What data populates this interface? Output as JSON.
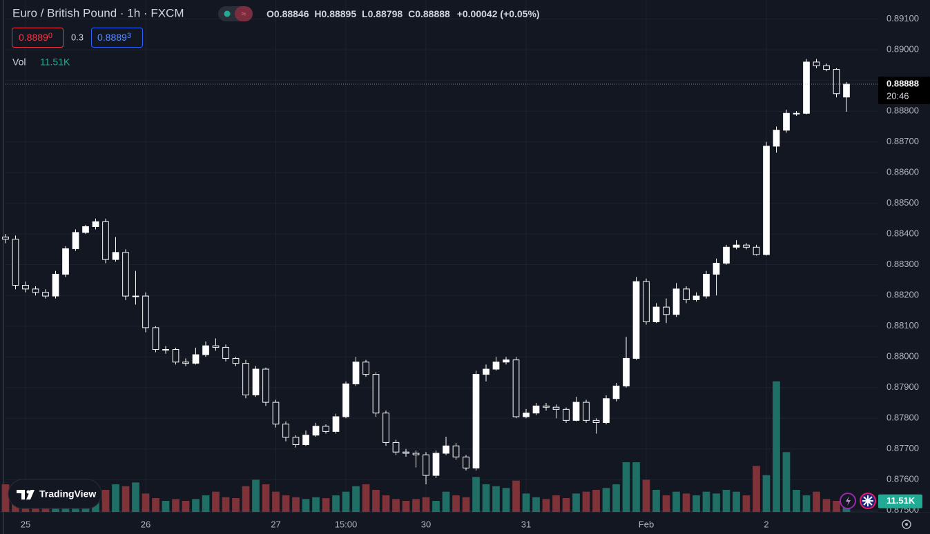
{
  "chart_data": {
    "type": "candlestick",
    "header": {
      "symbol": "Euro / British Pound · 1h · FXCM",
      "o_key": "O",
      "o_val": "0.88846",
      "h_key": "H",
      "h_val": "0.88895",
      "l_key": "L",
      "l_val": "0.88798",
      "c_key": "C",
      "c_val": "0.88888",
      "change": "+0.00042 (+0.05%)"
    },
    "bid": {
      "main": "0.8889",
      "sup": "0"
    },
    "spread": "0.3",
    "ask": {
      "main": "0.8889",
      "sup": "3"
    },
    "volume_title": "Vol",
    "volume_label": "11.51K",
    "last_price_label": "0.88888",
    "countdown": "20:46",
    "logo": "TradingView",
    "categories": [
      null,
      null,
      "25",
      null,
      null,
      null,
      null,
      null,
      null,
      null,
      null,
      null,
      null,
      null,
      "26",
      null,
      null,
      null,
      null,
      null,
      null,
      null,
      null,
      null,
      null,
      null,
      null,
      "27",
      null,
      null,
      null,
      null,
      null,
      null,
      "15:00",
      null,
      null,
      null,
      null,
      null,
      null,
      null,
      "30",
      null,
      null,
      null,
      null,
      null,
      null,
      null,
      null,
      null,
      "31",
      null,
      null,
      null,
      null,
      null,
      null,
      null,
      null,
      null,
      null,
      null,
      "Feb",
      null,
      null,
      null,
      null,
      null,
      null,
      null,
      null,
      null,
      null,
      null,
      "2",
      null,
      null,
      null,
      null,
      null,
      null,
      null,
      null
    ],
    "open": [
      0.8839,
      0.88383,
      0.88233,
      0.88221,
      0.8821,
      0.88198,
      0.88269,
      0.88352,
      0.88405,
      0.88424,
      0.8844,
      0.88317,
      0.8834,
      0.88198,
      0.88198,
      0.88095,
      0.88024,
      0.88024,
      0.87983,
      0.87979,
      0.88007,
      0.88036,
      0.88031,
      0.87995,
      0.87979,
      0.87876,
      0.8796,
      0.87852,
      0.87781,
      0.87738,
      0.87714,
      0.87745,
      0.87774,
      0.87757,
      0.87805,
      0.87912,
      0.87983,
      0.87943,
      0.87817,
      0.87721,
      0.8769,
      0.87686,
      0.87681,
      0.87614,
      0.87686,
      0.8771,
      0.87674,
      0.87638,
      0.87943,
      0.8796,
      0.87983,
      0.8799,
      0.87805,
      0.87817,
      0.8784,
      0.87836,
      0.87829,
      0.87793,
      0.87852,
      0.87793,
      0.87786,
      0.87864,
      0.87905,
      0.87995,
      0.88245,
      0.88114,
      0.88162,
      0.88138,
      0.88221,
      0.88186,
      0.88198,
      0.88269,
      0.88305,
      0.88357,
      0.88364,
      0.88357,
      0.88333,
      0.88686,
      0.88738,
      0.88793,
      0.88793,
      0.8896,
      0.88948,
      0.88936,
      0.88846
    ],
    "high": [
      0.884,
      0.88395,
      0.88245,
      0.8823,
      0.8822,
      0.8828,
      0.8836,
      0.88415,
      0.8843,
      0.8845,
      0.8845,
      0.8839,
      0.8835,
      0.8828,
      0.8821,
      0.881,
      0.88035,
      0.8803,
      0.87995,
      0.8803,
      0.8805,
      0.8806,
      0.8804,
      0.88,
      0.8799,
      0.8797,
      0.87965,
      0.8786,
      0.8779,
      0.87745,
      0.8776,
      0.87785,
      0.8778,
      0.87815,
      0.8792,
      0.88,
      0.8799,
      0.8795,
      0.87825,
      0.8773,
      0.877,
      0.87695,
      0.8769,
      0.87695,
      0.8774,
      0.8772,
      0.8768,
      0.87955,
      0.87975,
      0.88,
      0.88,
      0.88,
      0.8783,
      0.8785,
      0.8785,
      0.87845,
      0.87835,
      0.8787,
      0.8786,
      0.878,
      0.87875,
      0.87915,
      0.88065,
      0.8826,
      0.88255,
      0.88175,
      0.8819,
      0.8824,
      0.8823,
      0.8821,
      0.8828,
      0.8832,
      0.88365,
      0.8838,
      0.8837,
      0.88365,
      0.887,
      0.8875,
      0.88805,
      0.888,
      0.8897,
      0.8897,
      0.88955,
      0.8894,
      0.88895
    ],
    "low": [
      0.8837,
      0.8822,
      0.8821,
      0.882,
      0.8819,
      0.8819,
      0.8826,
      0.88345,
      0.884,
      0.88415,
      0.88305,
      0.8831,
      0.88185,
      0.8817,
      0.8808,
      0.88015,
      0.8801,
      0.87975,
      0.8797,
      0.87975,
      0.88,
      0.8802,
      0.87985,
      0.8797,
      0.87865,
      0.8787,
      0.8784,
      0.8777,
      0.87725,
      0.87705,
      0.8771,
      0.8774,
      0.8775,
      0.8775,
      0.878,
      0.87905,
      0.87935,
      0.87805,
      0.8771,
      0.8768,
      0.87675,
      0.8764,
      0.87585,
      0.87605,
      0.8768,
      0.87665,
      0.8763,
      0.8763,
      0.8792,
      0.87955,
      0.87975,
      0.878,
      0.878,
      0.8781,
      0.87825,
      0.878,
      0.87785,
      0.8779,
      0.87785,
      0.8775,
      0.8778,
      0.87855,
      0.879,
      0.8799,
      0.88105,
      0.8811,
      0.8811,
      0.8813,
      0.88175,
      0.8818,
      0.8819,
      0.882,
      0.883,
      0.8835,
      0.8835,
      0.8833,
      0.8833,
      0.88665,
      0.8873,
      0.88785,
      0.8879,
      0.8894,
      0.8893,
      0.88845,
      0.88798
    ],
    "close": [
      0.88383,
      0.88233,
      0.88221,
      0.8821,
      0.88198,
      0.88269,
      0.88352,
      0.88405,
      0.88424,
      0.8844,
      0.88317,
      0.8834,
      0.88198,
      0.88198,
      0.88095,
      0.88024,
      0.88024,
      0.87983,
      0.87979,
      0.88007,
      0.88036,
      0.88031,
      0.87995,
      0.87979,
      0.87876,
      0.8796,
      0.87852,
      0.87781,
      0.87738,
      0.87714,
      0.87745,
      0.87774,
      0.87757,
      0.87805,
      0.87912,
      0.87983,
      0.87943,
      0.87817,
      0.87721,
      0.8769,
      0.87686,
      0.87681,
      0.87614,
      0.87686,
      0.8771,
      0.87674,
      0.87638,
      0.87943,
      0.8796,
      0.87983,
      0.8799,
      0.87805,
      0.87817,
      0.8784,
      0.87836,
      0.87829,
      0.87793,
      0.87852,
      0.87793,
      0.87786,
      0.87864,
      0.87905,
      0.87995,
      0.88245,
      0.88114,
      0.88162,
      0.88138,
      0.88221,
      0.88186,
      0.88198,
      0.88269,
      0.88305,
      0.88357,
      0.88364,
      0.88357,
      0.88333,
      0.88686,
      0.88738,
      0.88793,
      0.88793,
      0.8896,
      0.88948,
      0.88936,
      0.88857,
      0.88888
    ],
    "volume": [
      30,
      22,
      18,
      15,
      16,
      20,
      22,
      18,
      20,
      25,
      24,
      30,
      28,
      32,
      20,
      15,
      12,
      14,
      12,
      14,
      18,
      22,
      16,
      15,
      28,
      35,
      30,
      22,
      18,
      16,
      14,
      16,
      15,
      18,
      22,
      28,
      30,
      24,
      18,
      14,
      12,
      14,
      16,
      12,
      22,
      18,
      16,
      38,
      30,
      28,
      26,
      34,
      20,
      16,
      14,
      18,
      15,
      20,
      22,
      24,
      26,
      30,
      54,
      54,
      35,
      24,
      18,
      22,
      20,
      18,
      22,
      20,
      24,
      22,
      18,
      50,
      40,
      142,
      65,
      24,
      18,
      22,
      14,
      12,
      11.51
    ],
    "volume_ylim": [
      0,
      150
    ],
    "ylim": [
      0.87495,
      0.89162
    ],
    "yticks": [
      {
        "value": 0.891,
        "label": "0.89100"
      },
      {
        "value": 0.89,
        "label": "0.89000"
      },
      {
        "value": 0.889,
        "label": "0.88900"
      },
      {
        "value": 0.888,
        "label": "0.88800"
      },
      {
        "value": 0.887,
        "label": "0.88700"
      },
      {
        "value": 0.886,
        "label": "0.88600"
      },
      {
        "value": 0.885,
        "label": "0.88500"
      },
      {
        "value": 0.884,
        "label": "0.88400"
      },
      {
        "value": 0.883,
        "label": "0.88300"
      },
      {
        "value": 0.882,
        "label": "0.88200"
      },
      {
        "value": 0.881,
        "label": "0.88100"
      },
      {
        "value": 0.88,
        "label": "0.88000"
      },
      {
        "value": 0.879,
        "label": "0.87900"
      },
      {
        "value": 0.878,
        "label": "0.87800"
      },
      {
        "value": 0.877,
        "label": "0.87700"
      },
      {
        "value": 0.876,
        "label": "0.87600"
      },
      {
        "value": 0.875,
        "label": "0.87500"
      }
    ],
    "grid": true,
    "up_color": "#ffffff",
    "down_color": "#131722",
    "wick_color": "#ffffff",
    "volume_up_color": "#1f6f66",
    "volume_down_color": "#7f3339"
  }
}
